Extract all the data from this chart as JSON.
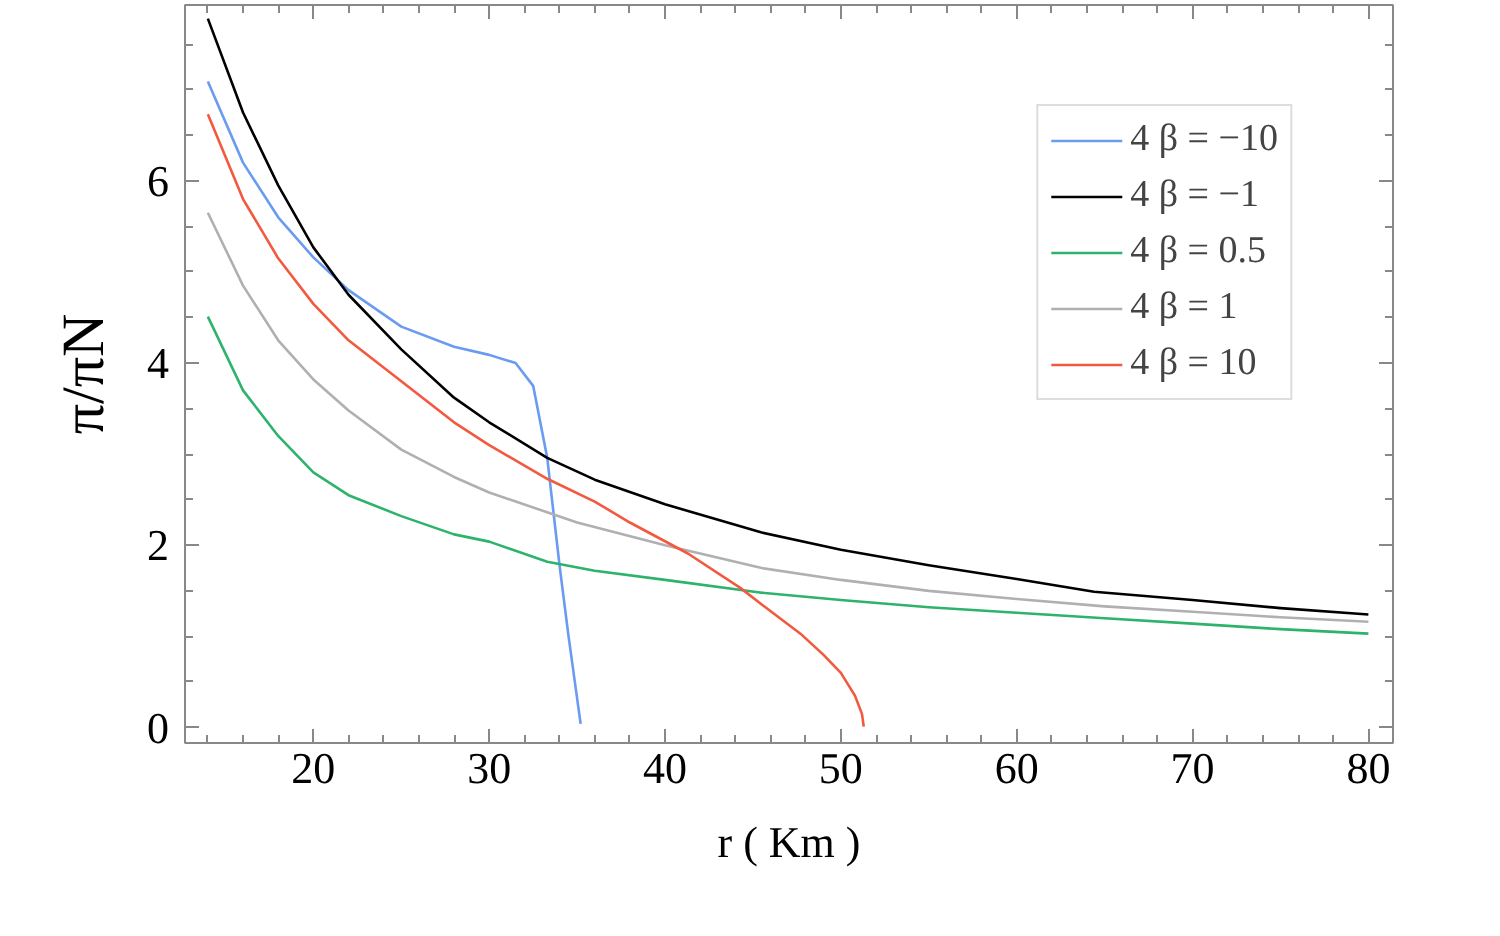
{
  "chart_data": {
    "type": "line",
    "xlabel": "r ( Km )",
    "ylabel": "π/πN",
    "xlim": [
      12.7,
      81.4
    ],
    "ylim": [
      -0.17,
      7.93
    ],
    "xticks": [
      20,
      30,
      40,
      50,
      60,
      70,
      80
    ],
    "yticks": [
      0,
      2,
      4,
      6
    ],
    "grid": false,
    "legend": "top right",
    "line_style": "solid",
    "series": [
      {
        "name": "4 β = −10",
        "color": "#6a9bf0",
        "x": [
          14,
          16,
          18,
          20,
          22,
          25,
          28,
          30,
          31.5,
          32.5,
          33.3,
          34,
          34.5,
          35.2
        ],
        "values": [
          7.09,
          6.2,
          5.6,
          5.16,
          4.8,
          4.4,
          4.18,
          4.09,
          4.0,
          3.75,
          2.96,
          1.78,
          1.02,
          0.04
        ]
      },
      {
        "name": "4 β = −1",
        "color": "#000000",
        "x": [
          14,
          16,
          18,
          20,
          22,
          25,
          28,
          30,
          33.3,
          36,
          40,
          45.5,
          50,
          55,
          60,
          64.4,
          70,
          75,
          80
        ],
        "values": [
          7.78,
          6.75,
          5.95,
          5.27,
          4.75,
          4.15,
          3.62,
          3.35,
          2.96,
          2.72,
          2.45,
          2.14,
          1.95,
          1.78,
          1.63,
          1.49,
          1.4,
          1.31,
          1.24
        ]
      },
      {
        "name": "4 β = 0.5",
        "color": "#2db36b",
        "x": [
          14,
          16,
          18,
          20,
          22,
          25,
          28,
          30,
          33.3,
          36,
          40,
          45.5,
          50,
          55,
          60,
          65,
          70,
          75,
          80
        ],
        "values": [
          4.51,
          3.7,
          3.2,
          2.8,
          2.55,
          2.32,
          2.12,
          2.04,
          1.82,
          1.72,
          1.62,
          1.48,
          1.4,
          1.32,
          1.26,
          1.2,
          1.14,
          1.08,
          1.03
        ]
      },
      {
        "name": "4 β = 1",
        "color": "#b0b0b0",
        "x": [
          14,
          16,
          18,
          20,
          22,
          25,
          28,
          30,
          35,
          40,
          45.5,
          50,
          55,
          60,
          65,
          70,
          75,
          80
        ],
        "values": [
          5.65,
          4.85,
          4.25,
          3.82,
          3.48,
          3.05,
          2.75,
          2.58,
          2.25,
          2.0,
          1.75,
          1.62,
          1.5,
          1.41,
          1.33,
          1.27,
          1.21,
          1.16
        ]
      },
      {
        "name": "4 β = 10",
        "color": "#f2593f",
        "x": [
          14,
          16,
          18,
          20,
          22,
          25,
          28,
          30,
          33.3,
          36,
          38,
          41.3,
          44.3,
          45.5,
          47.7,
          49,
          50,
          50.8,
          51.2,
          51.3
        ],
        "values": [
          6.73,
          5.8,
          5.15,
          4.65,
          4.25,
          3.8,
          3.35,
          3.1,
          2.73,
          2.48,
          2.25,
          1.91,
          1.53,
          1.35,
          1.03,
          0.8,
          0.6,
          0.35,
          0.15,
          0.01
        ]
      }
    ]
  }
}
